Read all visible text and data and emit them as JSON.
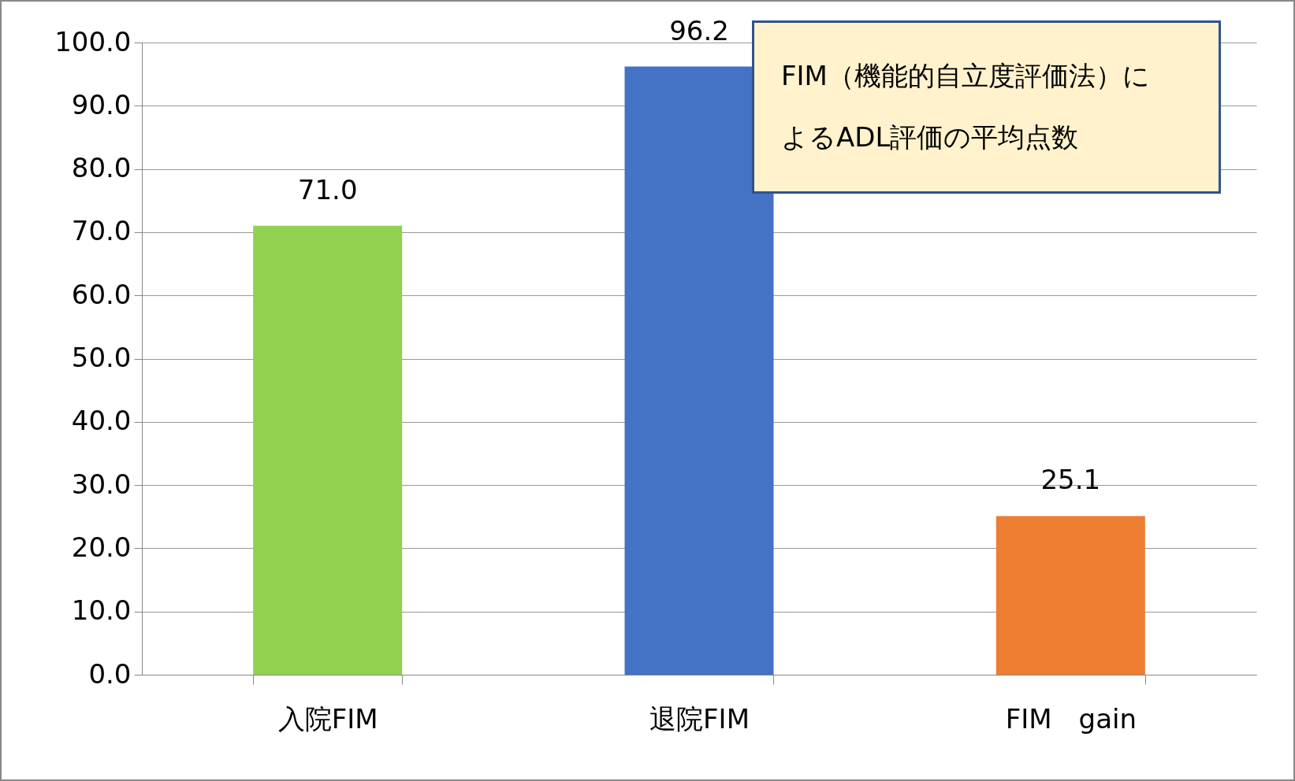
{
  "chart_data": {
    "type": "bar",
    "title": "FIM（機能的自立度評価法）によるADL評価の平均点数",
    "categories": [
      "入院FIM",
      "退院FIM",
      "FIM　gain"
    ],
    "values": [
      71.0,
      96.2,
      25.1
    ],
    "colors": [
      "#92d050",
      "#4472c4",
      "#ed7d31"
    ],
    "ylim": [
      0,
      100
    ],
    "yticks": [
      {
        "value": 0,
        "label": "0.0"
      },
      {
        "value": 10,
        "label": "10.0"
      },
      {
        "value": 20,
        "label": "20.0"
      },
      {
        "value": 30,
        "label": "30.0"
      },
      {
        "value": 40,
        "label": "40.0"
      },
      {
        "value": 50,
        "label": "50.0"
      },
      {
        "value": 60,
        "label": "60.0"
      },
      {
        "value": 70,
        "label": "70.0"
      },
      {
        "value": 80,
        "label": "80.0"
      },
      {
        "value": 90,
        "label": "90.0"
      },
      {
        "value": 100,
        "label": "100.0"
      }
    ],
    "grid": "y",
    "value_labels": [
      "71.0",
      "96.2",
      "25.1"
    ]
  }
}
